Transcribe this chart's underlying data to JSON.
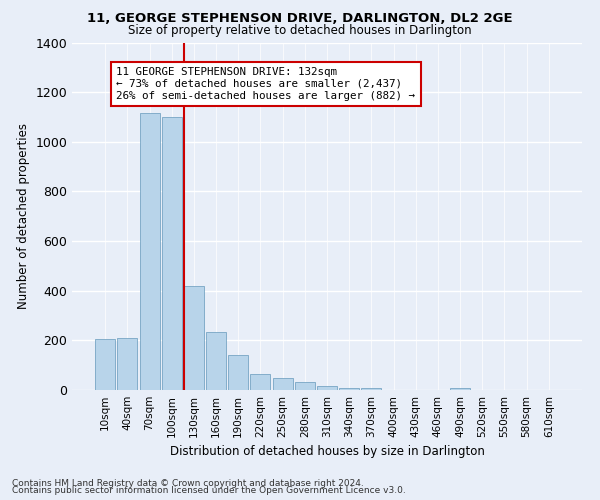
{
  "title": "11, GEORGE STEPHENSON DRIVE, DARLINGTON, DL2 2GE",
  "subtitle": "Size of property relative to detached houses in Darlington",
  "xlabel": "Distribution of detached houses by size in Darlington",
  "ylabel": "Number of detached properties",
  "bar_color": "#b8d4ea",
  "bar_edge_color": "#6699bb",
  "background_color": "#e8eef8",
  "grid_color": "#ffffff",
  "categories": [
    "10sqm",
    "40sqm",
    "70sqm",
    "100sqm",
    "130sqm",
    "160sqm",
    "190sqm",
    "220sqm",
    "250sqm",
    "280sqm",
    "310sqm",
    "340sqm",
    "370sqm",
    "400sqm",
    "430sqm",
    "460sqm",
    "490sqm",
    "520sqm",
    "550sqm",
    "580sqm",
    "610sqm"
  ],
  "values": [
    205,
    210,
    1115,
    1100,
    420,
    235,
    140,
    65,
    48,
    32,
    18,
    10,
    10,
    0,
    0,
    0,
    10,
    0,
    0,
    0,
    0
  ],
  "marker_color": "#cc0000",
  "annotation_text": "11 GEORGE STEPHENSON DRIVE: 132sqm\n← 73% of detached houses are smaller (2,437)\n26% of semi-detached houses are larger (882) →",
  "annotation_box_color": "#ffffff",
  "annotation_box_edge": "#cc0000",
  "footnote1": "Contains HM Land Registry data © Crown copyright and database right 2024.",
  "footnote2": "Contains public sector information licensed under the Open Government Licence v3.0.",
  "ylim": [
    0,
    1400
  ]
}
